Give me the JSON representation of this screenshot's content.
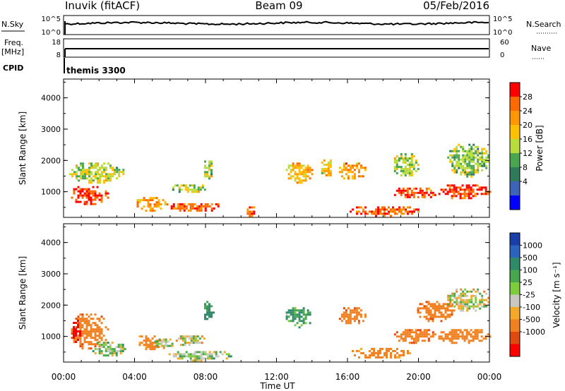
{
  "header": {
    "title": "Inuvik (fitACF)",
    "beam": "Beam 09",
    "date": "05/Feb/2016"
  },
  "top_panels": {
    "nsky_label": "N.Sky",
    "nsky_ticks": [
      "10^5",
      "10^0"
    ],
    "nsearch_label": "N.Search",
    "nsearch_ticks": [
      "10^5",
      "10^0"
    ],
    "freq_label": "Freq.",
    "freq_unit": "[MHz]",
    "freq_ticks": [
      "18",
      "8"
    ],
    "nave_label": "Nave",
    "nave_ticks": [
      "60",
      "0"
    ],
    "cpid_label": "CPID",
    "cpid_value": "themis 3300"
  },
  "power_colorbar": {
    "label": "Power [dB]",
    "ticks": [
      "28",
      "24",
      "20",
      "16",
      "12",
      "8",
      "4"
    ],
    "colors": [
      "#ff0000",
      "#ff6a00",
      "#ff9800",
      "#ffc000",
      "#b8dc3c",
      "#4aa64e",
      "#2f7a5c",
      "#3e64b8",
      "#0000ff"
    ]
  },
  "velocity_colorbar": {
    "label": "Velocity [m s⁻¹]",
    "ticks": [
      "1000",
      "500",
      "100",
      "25",
      "-25",
      "-100",
      "-500",
      "-1000"
    ],
    "colors": [
      "#1a3ea8",
      "#2b64c0",
      "#2f8a6a",
      "#4aa64e",
      "#7ccc3c",
      "#c8c8c0",
      "#f4a828",
      "#f08020",
      "#e04a10",
      "#ff0000"
    ]
  },
  "xaxis": {
    "label": "Time UT",
    "ticks": [
      "00:00",
      "04:00",
      "08:00",
      "12:00",
      "16:00",
      "20:00",
      "00:00"
    ]
  },
  "yaxis": {
    "label": "Slant Range [km]",
    "ticks": [
      "4000",
      "3000",
      "2000",
      "1000"
    ]
  },
  "chart_data": [
    {
      "type": "heatmap",
      "title": "Power",
      "xlabel": "Time UT",
      "ylabel": "Slant Range [km]",
      "xlim": [
        0,
        24
      ],
      "ylim": [
        180,
        4600
      ],
      "zlabel": "Power [dB]",
      "zlim": [
        0,
        32
      ],
      "blobs": [
        {
          "t0": 0.3,
          "t1": 2.5,
          "r0": 600,
          "r1": 1250,
          "z": 28
        },
        {
          "t0": 0.2,
          "t1": 3.2,
          "r0": 1300,
          "r1": 2000,
          "z": 14
        },
        {
          "t0": 2.6,
          "t1": 3.5,
          "r0": 1500,
          "r1": 1800,
          "z": 14
        },
        {
          "t0": 4.0,
          "t1": 5.8,
          "r0": 400,
          "r1": 900,
          "z": 22
        },
        {
          "t0": 5.8,
          "t1": 9.0,
          "r0": 400,
          "r1": 700,
          "z": 26
        },
        {
          "t0": 6.0,
          "t1": 8.0,
          "r0": 1000,
          "r1": 1300,
          "z": 14
        },
        {
          "t0": 7.8,
          "t1": 8.4,
          "r0": 1400,
          "r1": 2200,
          "z": 14
        },
        {
          "t0": 10.2,
          "t1": 10.8,
          "r0": 250,
          "r1": 600,
          "z": 26
        },
        {
          "t0": 12.4,
          "t1": 14.0,
          "r0": 1300,
          "r1": 2000,
          "z": 20
        },
        {
          "t0": 14.4,
          "t1": 15.2,
          "r0": 1500,
          "r1": 2100,
          "z": 18
        },
        {
          "t0": 15.4,
          "t1": 17.0,
          "r0": 1400,
          "r1": 2000,
          "z": 22
        },
        {
          "t0": 16.0,
          "t1": 20.0,
          "r0": 250,
          "r1": 600,
          "z": 26
        },
        {
          "t0": 18.5,
          "t1": 21.0,
          "r0": 800,
          "r1": 1200,
          "z": 28
        },
        {
          "t0": 18.5,
          "t1": 20.0,
          "r0": 1500,
          "r1": 2300,
          "z": 14
        },
        {
          "t0": 21.0,
          "t1": 24.0,
          "r0": 800,
          "r1": 1300,
          "z": 28
        },
        {
          "t0": 21.5,
          "t1": 24.0,
          "r0": 1500,
          "r1": 2600,
          "z": 12
        }
      ]
    },
    {
      "type": "heatmap",
      "title": "Velocity",
      "xlabel": "Time UT",
      "ylabel": "Slant Range [km]",
      "xlim": [
        0,
        24
      ],
      "ylim": [
        180,
        4600
      ],
      "zlabel": "Velocity [m s⁻¹]",
      "zlim": [
        -1000,
        1000
      ],
      "blobs": [
        {
          "t0": 0.3,
          "t1": 2.5,
          "r0": 600,
          "r1": 1800,
          "z": -300
        },
        {
          "t0": 0.4,
          "t1": 0.9,
          "r0": 800,
          "r1": 1600,
          "z": -900
        },
        {
          "t0": 1.5,
          "t1": 3.5,
          "r0": 400,
          "r1": 900,
          "z": 60
        },
        {
          "t0": 4.0,
          "t1": 5.5,
          "r0": 600,
          "r1": 1100,
          "z": -200
        },
        {
          "t0": 5.0,
          "t1": 6.2,
          "r0": 600,
          "r1": 1000,
          "z": 0
        },
        {
          "t0": 6.2,
          "t1": 8.0,
          "r0": 700,
          "r1": 1100,
          "z": 5
        },
        {
          "t0": 5.8,
          "t1": 9.5,
          "r0": 250,
          "r1": 600,
          "z": 60
        },
        {
          "t0": 7.8,
          "t1": 8.4,
          "r0": 1400,
          "r1": 2200,
          "z": 200
        },
        {
          "t0": 12.4,
          "t1": 14.0,
          "r0": 1300,
          "r1": 2000,
          "z": 150
        },
        {
          "t0": 15.4,
          "t1": 17.0,
          "r0": 1400,
          "r1": 2000,
          "z": -300
        },
        {
          "t0": 16.0,
          "t1": 19.5,
          "r0": 300,
          "r1": 700,
          "z": -200
        },
        {
          "t0": 18.5,
          "t1": 21.0,
          "r0": 800,
          "r1": 1300,
          "z": -300
        },
        {
          "t0": 19.8,
          "t1": 22.0,
          "r0": 1500,
          "r1": 2200,
          "z": -300
        },
        {
          "t0": 21.5,
          "t1": 24.0,
          "r0": 1800,
          "r1": 2600,
          "z": 0
        },
        {
          "t0": 21.0,
          "t1": 24.0,
          "r0": 800,
          "r1": 1300,
          "z": -250
        }
      ]
    }
  ]
}
